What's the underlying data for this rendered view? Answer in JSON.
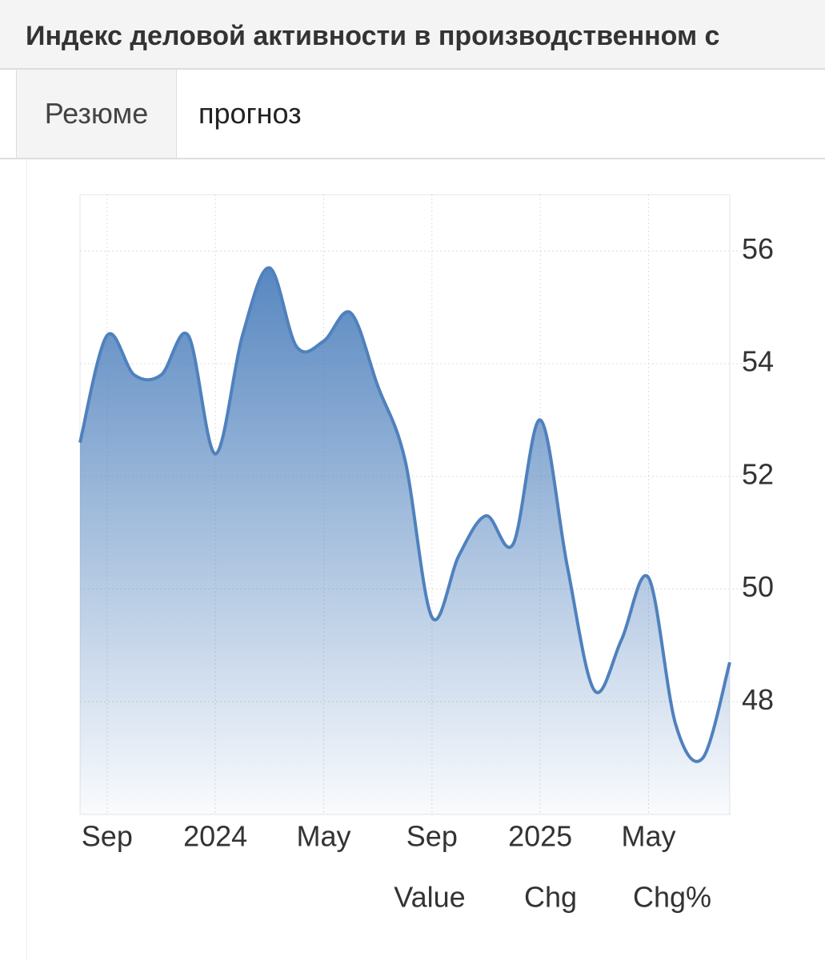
{
  "header": {
    "title": "Индекс деловой активности в производственном с"
  },
  "tabs": [
    "Резюме",
    "прогноз"
  ],
  "chart_data": {
    "type": "area",
    "color": "#4f81bd",
    "grid": true,
    "x": [
      "2023-08",
      "2023-09",
      "2023-10",
      "2023-11",
      "2023-12",
      "2024-01",
      "2024-02",
      "2024-03",
      "2024-04",
      "2024-05",
      "2024-06",
      "2024-07",
      "2024-08",
      "2024-09",
      "2024-10",
      "2024-11",
      "2024-12",
      "2025-01",
      "2025-02",
      "2025-03",
      "2025-04",
      "2025-05",
      "2025-06",
      "2025-07",
      "2025-08"
    ],
    "values": [
      52.6,
      54.5,
      53.8,
      53.8,
      54.5,
      52.4,
      54.5,
      55.7,
      54.3,
      54.4,
      54.9,
      53.6,
      52.3,
      49.5,
      50.6,
      51.3,
      50.8,
      53.0,
      50.4,
      48.2,
      49.1,
      50.2,
      47.6,
      47.0,
      48.7
    ],
    "xlim": [
      "2023-08",
      "2025-08"
    ],
    "xticks": [
      {
        "value": "2023-09",
        "label": "Sep"
      },
      {
        "value": "2024-01",
        "label": "2024"
      },
      {
        "value": "2024-05",
        "label": "May"
      },
      {
        "value": "2024-09",
        "label": "Sep"
      },
      {
        "value": "2025-01",
        "label": "2025"
      },
      {
        "value": "2025-05",
        "label": "May"
      }
    ],
    "ylim": [
      46,
      57
    ],
    "yticks": [
      48,
      50,
      52,
      54,
      56
    ]
  },
  "view_tabs": {
    "items": [
      "Value",
      "Chg",
      "Chg%"
    ],
    "active": "Value"
  }
}
